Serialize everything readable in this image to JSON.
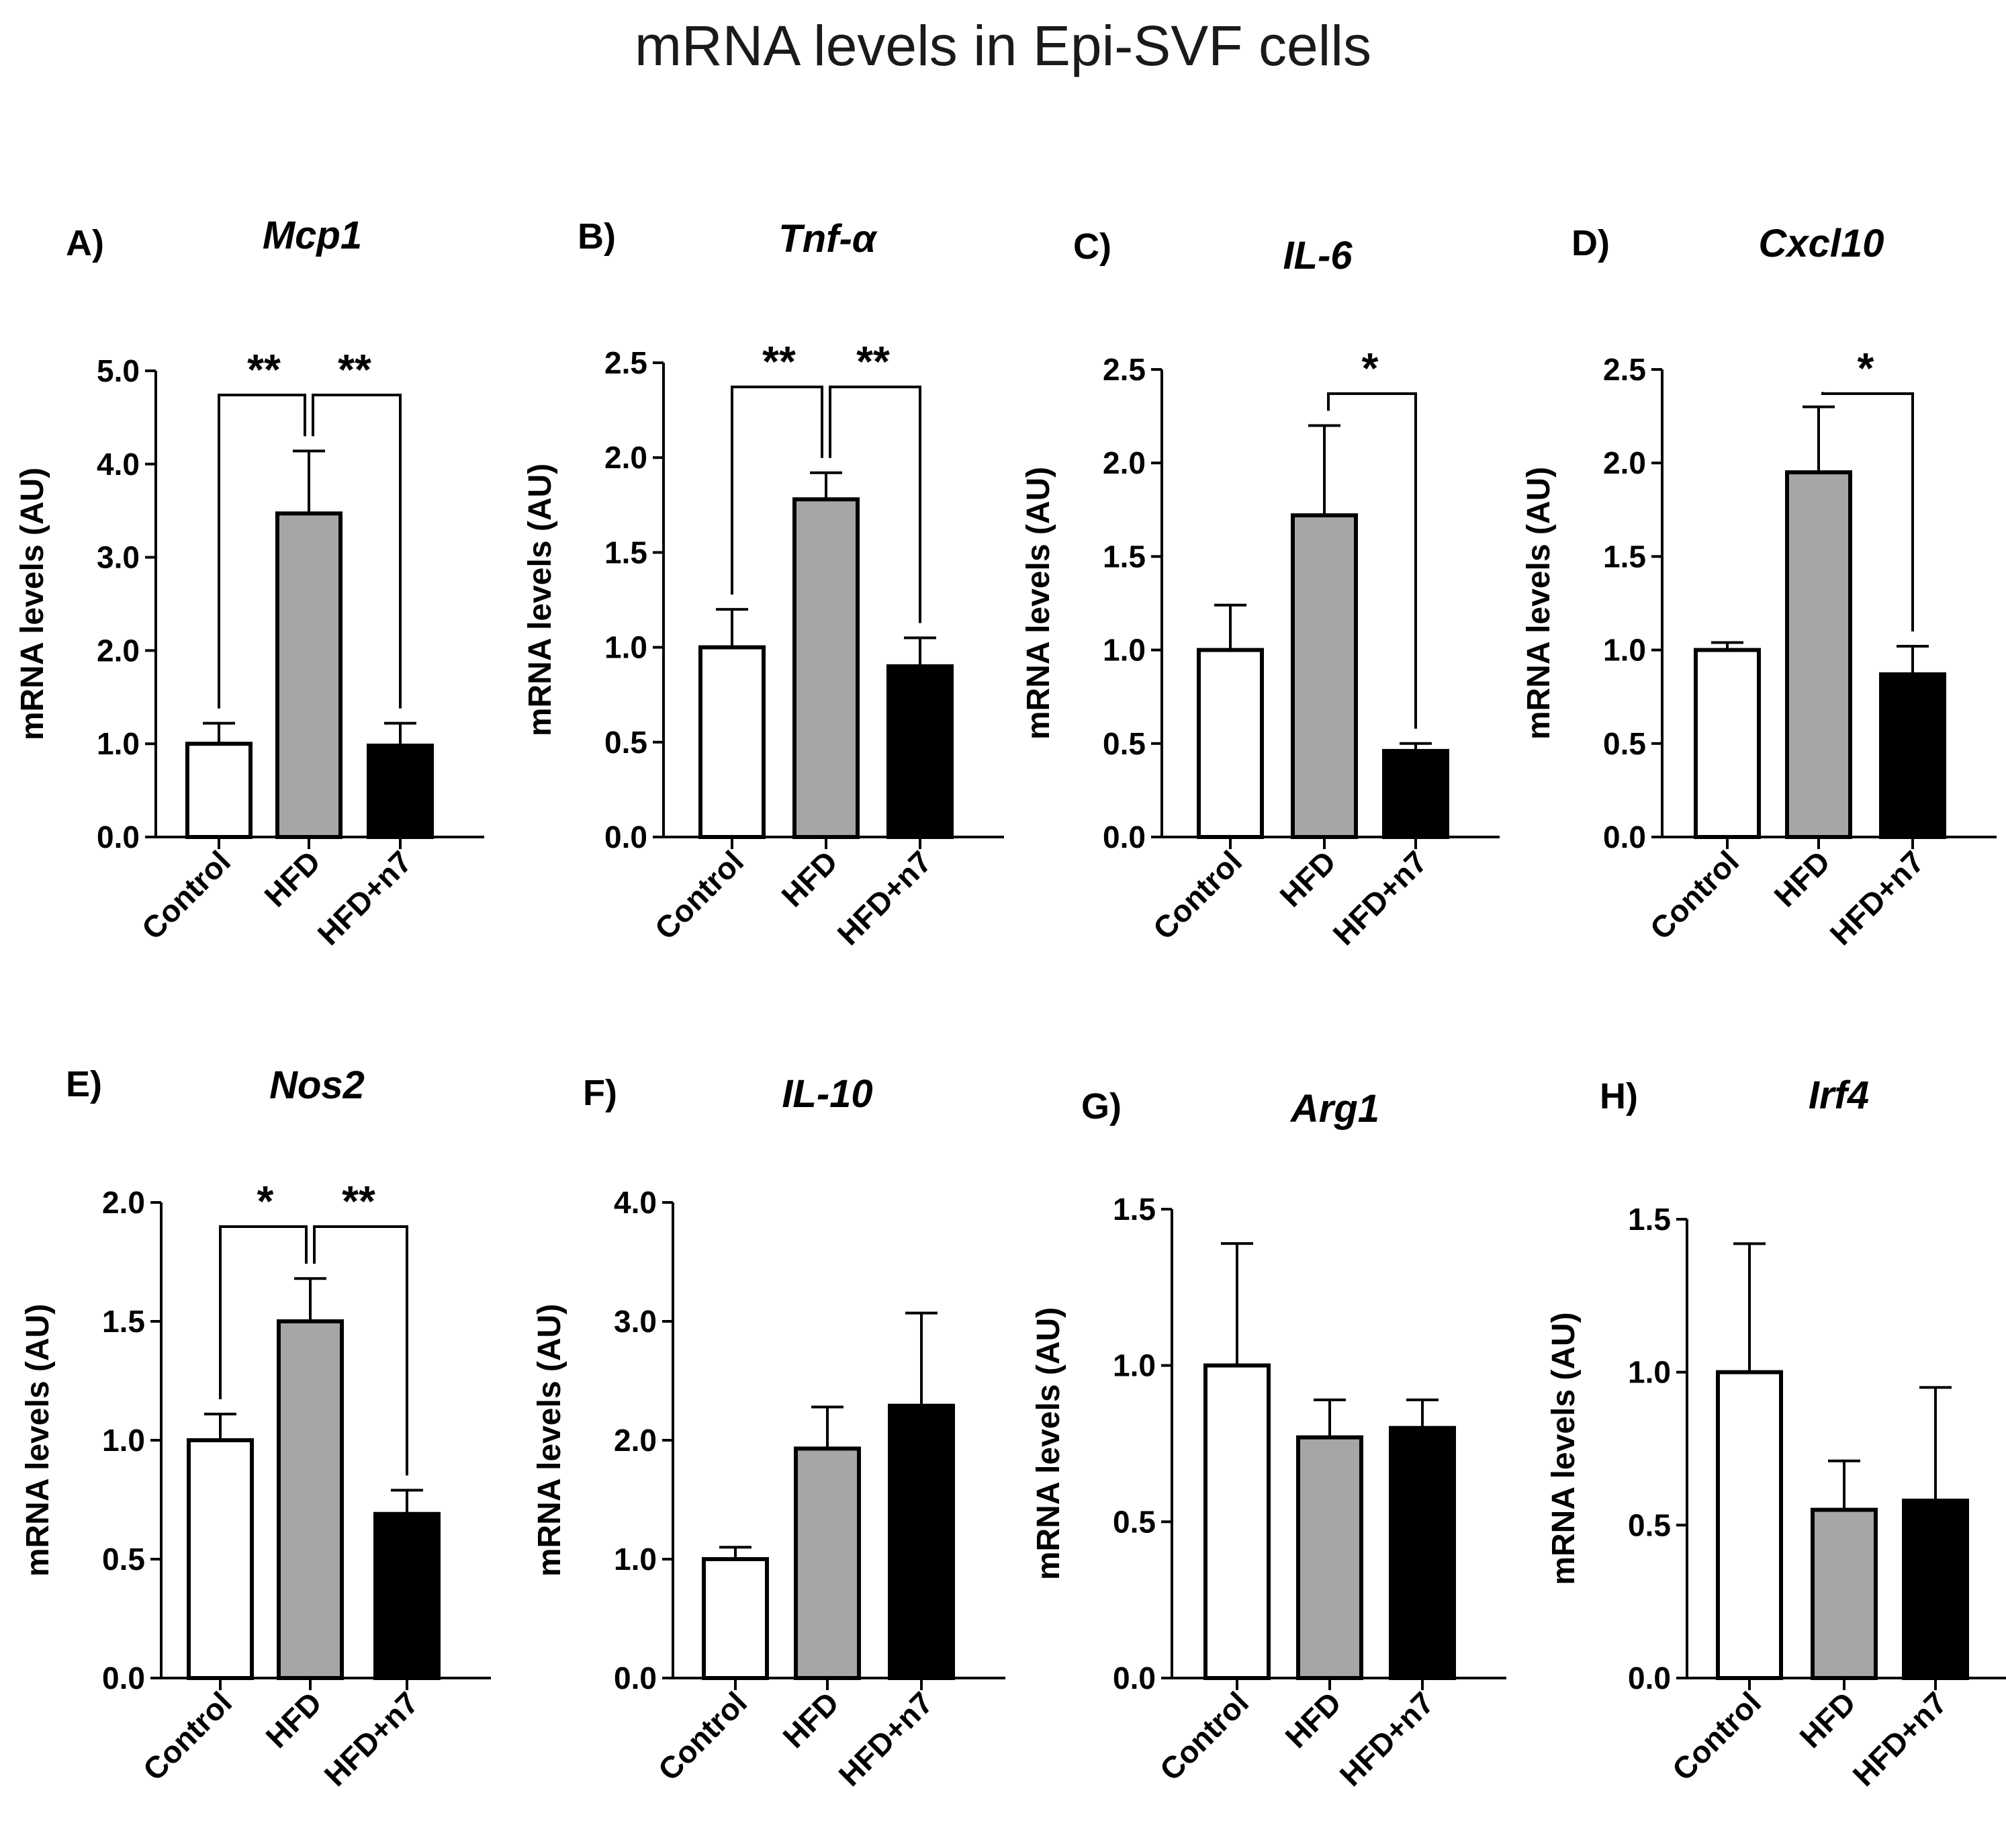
{
  "figure_title": "mRNA levels in Epi-SVF cells",
  "colors": {
    "Control": "#ffffff",
    "HFD": "#a6a6a6",
    "HFD+n7": "#000000",
    "stroke": "#000000"
  },
  "chart_data": [
    {
      "type": "bar",
      "panel": "A)",
      "title": "Mcp1",
      "ylabel": "mRNA levels (AU)",
      "categories": [
        "Control",
        "HFD",
        "HFD+n7"
      ],
      "values": [
        1.0,
        3.47,
        0.98
      ],
      "error": [
        0.22,
        0.67,
        0.24
      ],
      "ylim": [
        0,
        5
      ],
      "yticks": [
        "0.0",
        "1.0",
        "2.0",
        "3.0",
        "4.0",
        "5.0"
      ],
      "significance": [
        {
          "from": 0,
          "to": 1,
          "label": "**"
        },
        {
          "from": 1,
          "to": 2,
          "label": "**"
        }
      ]
    },
    {
      "type": "bar",
      "panel": "B)",
      "title": "Tnf-α",
      "ylabel": "mRNA levels (AU)",
      "categories": [
        "Control",
        "HFD",
        "HFD+n7"
      ],
      "values": [
        1.0,
        1.78,
        0.9
      ],
      "error": [
        0.2,
        0.14,
        0.15
      ],
      "ylim": [
        0,
        2.5
      ],
      "yticks": [
        "0.0",
        "0.5",
        "1.0",
        "1.5",
        "2.0",
        "2.5"
      ],
      "significance": [
        {
          "from": 0,
          "to": 1,
          "label": "**"
        },
        {
          "from": 1,
          "to": 2,
          "label": "**"
        }
      ]
    },
    {
      "type": "bar",
      "panel": "C)",
      "title": "IL-6",
      "ylabel": "mRNA levels (AU)",
      "categories": [
        "Control",
        "HFD",
        "HFD+n7"
      ],
      "values": [
        1.0,
        1.72,
        0.46
      ],
      "error": [
        0.24,
        0.48,
        0.04
      ],
      "ylim": [
        0,
        2.5
      ],
      "yticks": [
        "0.0",
        "0.5",
        "1.0",
        "1.5",
        "2.0",
        "2.5"
      ],
      "significance": [
        {
          "from": 1,
          "to": 2,
          "label": "*"
        }
      ]
    },
    {
      "type": "bar",
      "panel": "D)",
      "title": "Cxcl10",
      "ylabel": "mRNA levels (AU)",
      "categories": [
        "Control",
        "HFD",
        "HFD+n7"
      ],
      "values": [
        1.0,
        1.95,
        0.87
      ],
      "error": [
        0.04,
        0.35,
        0.15
      ],
      "ylim": [
        0,
        2.5
      ],
      "yticks": [
        "0.0",
        "0.5",
        "1.0",
        "1.5",
        "2.0",
        "2.5"
      ],
      "significance": [
        {
          "from": 1,
          "to": 2,
          "label": "*"
        }
      ]
    },
    {
      "type": "bar",
      "panel": "E)",
      "title": "Nos2",
      "ylabel": "mRNA levels (AU)",
      "categories": [
        "Control",
        "HFD",
        "HFD+n7"
      ],
      "values": [
        1.0,
        1.5,
        0.69
      ],
      "error": [
        0.11,
        0.18,
        0.1
      ],
      "ylim": [
        0,
        2
      ],
      "yticks": [
        "0.0",
        "0.5",
        "1.0",
        "1.5",
        "2.0"
      ],
      "significance": [
        {
          "from": 0,
          "to": 1,
          "label": "*"
        },
        {
          "from": 1,
          "to": 2,
          "label": "**"
        }
      ]
    },
    {
      "type": "bar",
      "panel": "F)",
      "title": "IL-10",
      "ylabel": "mRNA levels (AU)",
      "categories": [
        "Control",
        "HFD",
        "HFD+n7"
      ],
      "values": [
        1.0,
        1.93,
        2.29
      ],
      "error": [
        0.1,
        0.35,
        0.78
      ],
      "ylim": [
        0,
        4
      ],
      "yticks": [
        "0.0",
        "1.0",
        "2.0",
        "3.0",
        "4.0"
      ],
      "significance": []
    },
    {
      "type": "bar",
      "panel": "G)",
      "title": "Arg1",
      "ylabel": "mRNA levels (AU)",
      "categories": [
        "Control",
        "HFD",
        "HFD+n7"
      ],
      "values": [
        1.0,
        0.77,
        0.8
      ],
      "error": [
        0.39,
        0.12,
        0.09
      ],
      "ylim": [
        0,
        1.5
      ],
      "yticks": [
        "0.0",
        "0.5",
        "1.0",
        "1.5"
      ],
      "significance": []
    },
    {
      "type": "bar",
      "panel": "H)",
      "title": "Irf4",
      "ylabel": "mRNA levels (AU)",
      "categories": [
        "Control",
        "HFD",
        "HFD+n7"
      ],
      "values": [
        1.0,
        0.55,
        0.58
      ],
      "error": [
        0.42,
        0.16,
        0.37
      ],
      "ylim": [
        0,
        1.5
      ],
      "yticks": [
        "0.0",
        "0.5",
        "1.0",
        "1.5"
      ],
      "significance": []
    }
  ]
}
